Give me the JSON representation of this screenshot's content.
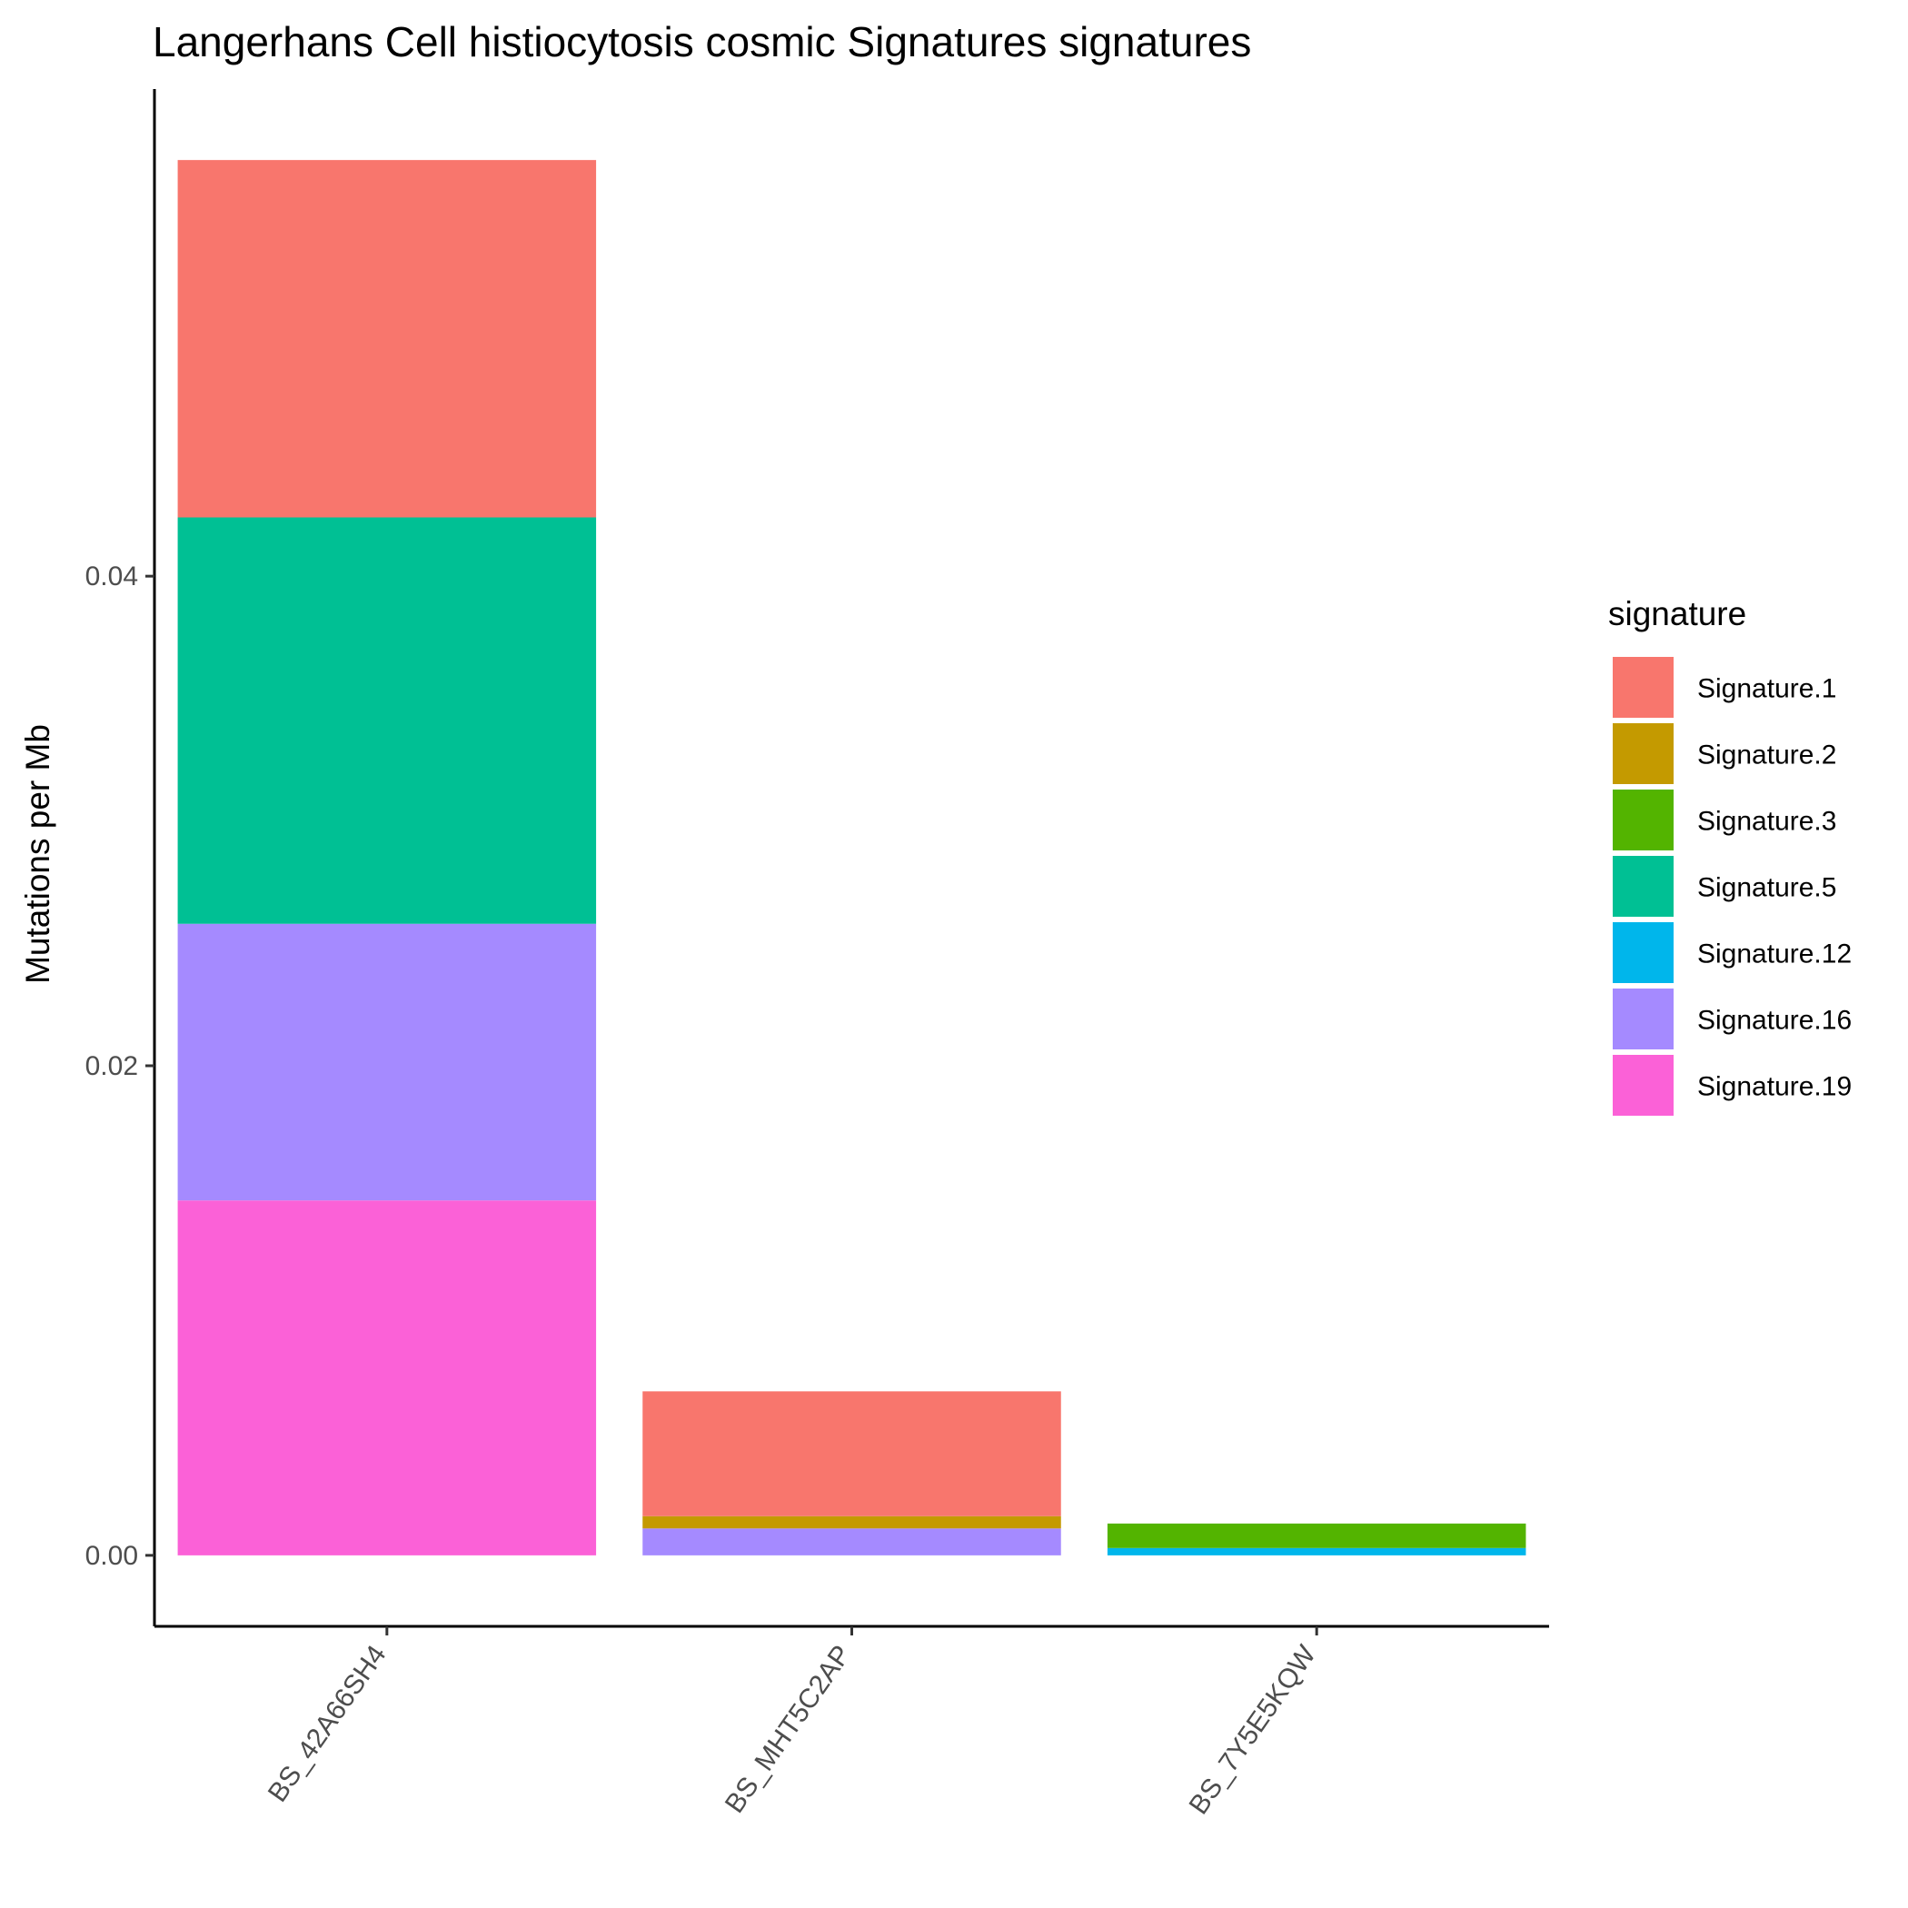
{
  "chart_data": {
    "type": "bar",
    "stacked": true,
    "title": "Langerhans Cell histiocytosis cosmic Signatures signatures",
    "xlabel": "",
    "ylabel": "Mutations per Mb",
    "categories": [
      "BS_42A66SH4",
      "BS_MHT5C2AP",
      "BS_7Y5E5KQW"
    ],
    "yticks": [
      0.0,
      0.02,
      0.04
    ],
    "ytick_labels": [
      "0.00",
      "0.02",
      "0.04"
    ],
    "ylim": [
      -0.0029,
      0.0599
    ],
    "grid": false,
    "legend": {
      "title": "signature",
      "position": "right",
      "entries": [
        "Signature.1",
        "Signature.2",
        "Signature.3",
        "Signature.5",
        "Signature.12",
        "Signature.16",
        "Signature.19"
      ]
    },
    "stack_order_top_to_bottom": [
      "Signature.1",
      "Signature.2",
      "Signature.3",
      "Signature.5",
      "Signature.12",
      "Signature.16",
      "Signature.19"
    ],
    "series": [
      {
        "name": "Signature.1",
        "color": "#F8766D",
        "values": [
          0.0146,
          0.0051,
          0.0
        ]
      },
      {
        "name": "Signature.2",
        "color": "#C49A00",
        "values": [
          0.0,
          0.0005,
          0.0
        ]
      },
      {
        "name": "Signature.3",
        "color": "#53B400",
        "values": [
          0.0,
          0.0,
          0.001
        ]
      },
      {
        "name": "Signature.5",
        "color": "#00C094",
        "values": [
          0.0166,
          0.0,
          0.0
        ]
      },
      {
        "name": "Signature.12",
        "color": "#00B6EB",
        "values": [
          0.0,
          0.0,
          0.0003
        ]
      },
      {
        "name": "Signature.16",
        "color": "#A58AFF",
        "values": [
          0.0113,
          0.0011,
          0.0
        ]
      },
      {
        "name": "Signature.19",
        "color": "#FB61D7",
        "values": [
          0.0145,
          0.0,
          0.0
        ]
      }
    ]
  }
}
